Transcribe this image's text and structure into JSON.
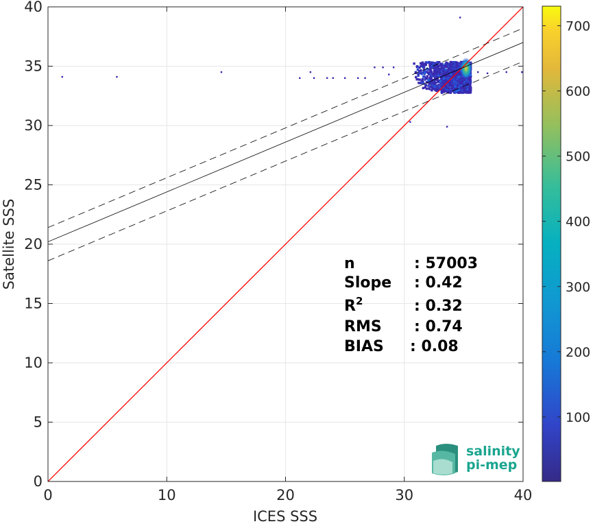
{
  "chart_data": {
    "type": "heatmap",
    "title": "",
    "xlabel": "ICES SSS",
    "ylabel": "Satellite SSS",
    "xlim": [
      0,
      40
    ],
    "ylim": [
      0,
      40
    ],
    "xticks": [
      0,
      10,
      20,
      30,
      40
    ],
    "yticks": [
      0,
      5,
      10,
      15,
      20,
      25,
      30,
      35,
      40
    ],
    "grid": true,
    "colorbar": {
      "colormap": "parula",
      "range": [
        1,
        730
      ],
      "ticks": [
        100,
        200,
        300,
        400,
        500,
        600,
        700
      ]
    },
    "identity_line": {
      "slope": 1,
      "intercept": 0,
      "color": "#ff0000"
    },
    "regression_line": {
      "slope": 0.42,
      "intercept": 20.2,
      "color": "#000000"
    },
    "regression_bounds": [
      {
        "slope": 0.42,
        "intercept": 21.4,
        "style": "dashed"
      },
      {
        "slope": 0.42,
        "intercept": 18.6,
        "style": "dashed"
      }
    ],
    "density_core": {
      "x": 35.2,
      "y": 34.8,
      "peak_count": 730
    },
    "density_cloud": {
      "x_range": [
        30.5,
        35.5
      ],
      "y_range": [
        32.3,
        36.0
      ]
    },
    "outliers": [
      {
        "x": 1.2,
        "y": 34.1
      },
      {
        "x": 5.8,
        "y": 34.1
      },
      {
        "x": 14.6,
        "y": 34.5
      },
      {
        "x": 21.2,
        "y": 34.0
      },
      {
        "x": 22.1,
        "y": 34.5
      },
      {
        "x": 22.4,
        "y": 34.0
      },
      {
        "x": 23.5,
        "y": 34.0
      },
      {
        "x": 24.0,
        "y": 34.0
      },
      {
        "x": 25.0,
        "y": 34.0
      },
      {
        "x": 26.1,
        "y": 34.0
      },
      {
        "x": 26.7,
        "y": 34.0
      },
      {
        "x": 27.5,
        "y": 34.9
      },
      {
        "x": 28.2,
        "y": 34.9
      },
      {
        "x": 28.7,
        "y": 34.3
      },
      {
        "x": 29.1,
        "y": 34.9
      },
      {
        "x": 30.5,
        "y": 30.3
      },
      {
        "x": 33.6,
        "y": 29.9
      },
      {
        "x": 34.7,
        "y": 39.1
      },
      {
        "x": 36.2,
        "y": 34.5
      },
      {
        "x": 37.0,
        "y": 34.4
      },
      {
        "x": 38.6,
        "y": 34.5
      },
      {
        "x": 39.9,
        "y": 34.5
      }
    ],
    "stats": [
      {
        "label": "n",
        "value": ": 57003"
      },
      {
        "label": "Slope",
        "value": ": 0.42"
      },
      {
        "label": "R",
        "sup": "2",
        "value": ": 0.32"
      },
      {
        "label": "RMS",
        "value": ": 0.74"
      },
      {
        "label": "BIAS",
        "value": ": 0.08"
      }
    ]
  },
  "logo": {
    "line1": "salinity",
    "line2": "pi-mep"
  }
}
